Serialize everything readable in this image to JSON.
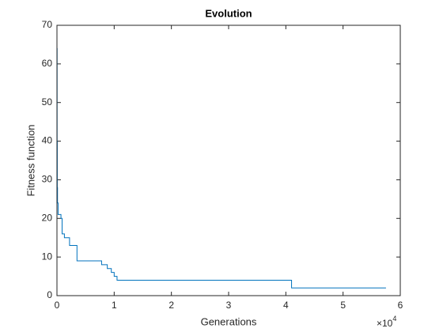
{
  "chart_data": {
    "type": "line",
    "drawstyle": "steps-post",
    "title": "Evolution",
    "x_label": "Generations",
    "y_label": "Fitness function",
    "x_exponent": {
      "base": "×10",
      "power": "4"
    },
    "x": [
      0,
      30,
      60,
      100,
      200,
      700,
      900,
      1300,
      2200,
      3500,
      7800,
      8800,
      9500,
      10000,
      10500,
      41000,
      57500
    ],
    "series": [
      {
        "name": "Fitness",
        "color": "#0072bd",
        "values": [
          64,
          40,
          28,
          24,
          21,
          20,
          16,
          15,
          13,
          9,
          8,
          7,
          6,
          5,
          4,
          2,
          2
        ]
      }
    ],
    "xlim": [
      0,
      60000
    ],
    "xticks": [
      0,
      {
        "value": 10000,
        "label": "1"
      },
      {
        "value": 20000,
        "label": "2"
      },
      {
        "value": 30000,
        "label": "3"
      },
      {
        "value": 40000,
        "label": "4"
      },
      {
        "value": 50000,
        "label": "5"
      },
      {
        "value": 60000,
        "label": "6"
      }
    ],
    "ylim": [
      0,
      70
    ],
    "yticks": [
      0,
      10,
      20,
      30,
      40,
      50,
      60,
      70
    ],
    "grid": false,
    "box": true
  }
}
